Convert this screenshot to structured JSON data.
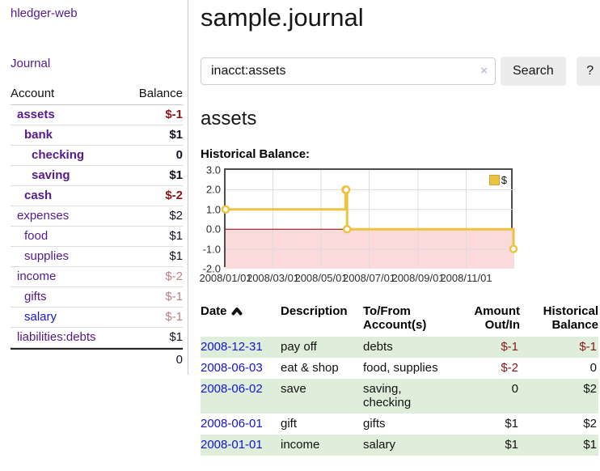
{
  "app": {
    "brand": "hledger-web",
    "nav": {
      "journal": "Journal"
    }
  },
  "sidebar": {
    "header": {
      "account": "Account",
      "balance": "Balance"
    },
    "accounts": [
      {
        "name": "assets",
        "balance": "$-1"
      },
      {
        "name": "bank",
        "balance": "$1"
      },
      {
        "name": "checking",
        "balance": "0"
      },
      {
        "name": "saving",
        "balance": "$1"
      },
      {
        "name": "cash",
        "balance": "$-2"
      },
      {
        "name": "expenses",
        "balance": "$2"
      },
      {
        "name": "food",
        "balance": "$1"
      },
      {
        "name": "supplies",
        "balance": "$1"
      },
      {
        "name": "income",
        "balance": "$-2"
      },
      {
        "name": "gifts",
        "balance": "$-1"
      },
      {
        "name": "salary",
        "balance": "$-1"
      },
      {
        "name": "liabilities:debts",
        "balance": "$1"
      }
    ],
    "total": "0"
  },
  "main": {
    "title": "sample.journal",
    "search": {
      "value": "inacct:assets",
      "button": "Search",
      "help": "?"
    },
    "account_heading": "assets",
    "chart_heading": "Historical Balance:"
  },
  "icons": {
    "search_clear": "×",
    "date_sort": "chevron-up"
  },
  "colors": {
    "accent_gold": "#edc240",
    "negative": "#8b1515",
    "negative_soft": "#bd8185",
    "row_green": "#dfeeda",
    "link_purple": "#551a8b",
    "link_blue": "#1414cc",
    "zero_line": "#8b0000",
    "negative_region": "#fbdadc"
  },
  "chart_data": {
    "type": "line",
    "step": true,
    "title": "Historical Balance",
    "legend": [
      {
        "label": "$",
        "color": "#edc240"
      }
    ],
    "x_range": [
      "2008-01-01",
      "2009-01-01"
    ],
    "ylim": [
      -2,
      3
    ],
    "y_tick_labels": [
      "3.0",
      "2.0",
      "1.0",
      "0.0",
      "-1.0",
      "-2.0"
    ],
    "x_tick_dates": [
      "2008-01-01",
      "2008-03-01",
      "2008-05-01",
      "2008-07-01",
      "2008-09-01",
      "2008-11-01"
    ],
    "x_tick_labels": [
      "2008/01/01",
      "2008/03/01",
      "2008/05/01",
      "2008/07/01",
      "2008/09/01",
      "2008/11/01"
    ],
    "series": [
      {
        "name": "$",
        "color": "#edc240",
        "points": [
          [
            "2008-01-01",
            1
          ],
          [
            "2008-06-01",
            2
          ],
          [
            "2008-06-02",
            2
          ],
          [
            "2008-06-03",
            0
          ],
          [
            "2008-12-31",
            -1
          ]
        ]
      }
    ],
    "grid": true,
    "legend_position": "top-right"
  },
  "table": {
    "headers": {
      "date": "Date",
      "description": "Description",
      "account_line1": "To/From",
      "account_line2": "Account(s)",
      "amount_line1": "Amount",
      "amount_line2": "Out/In",
      "balance_line1": "Historical",
      "balance_line2": "Balance"
    },
    "rows": [
      {
        "date": "2008-12-31",
        "description": "pay off",
        "account": "debts",
        "account2": "",
        "amount": "$-1",
        "balance": "$-1"
      },
      {
        "date": "2008-06-03",
        "description": "eat & shop",
        "account": "food, supplies",
        "account2": "",
        "amount": "$-2",
        "balance": "0"
      },
      {
        "date": "2008-06-02",
        "description": "save",
        "account": "saving,",
        "account2": "checking",
        "amount": "0",
        "balance": "$2"
      },
      {
        "date": "2008-06-01",
        "description": "gift",
        "account": "gifts",
        "account2": "",
        "amount": "$1",
        "balance": "$2"
      },
      {
        "date": "2008-01-01",
        "description": "income",
        "account": "salary",
        "account2": "",
        "amount": "$1",
        "balance": "$1"
      }
    ]
  }
}
